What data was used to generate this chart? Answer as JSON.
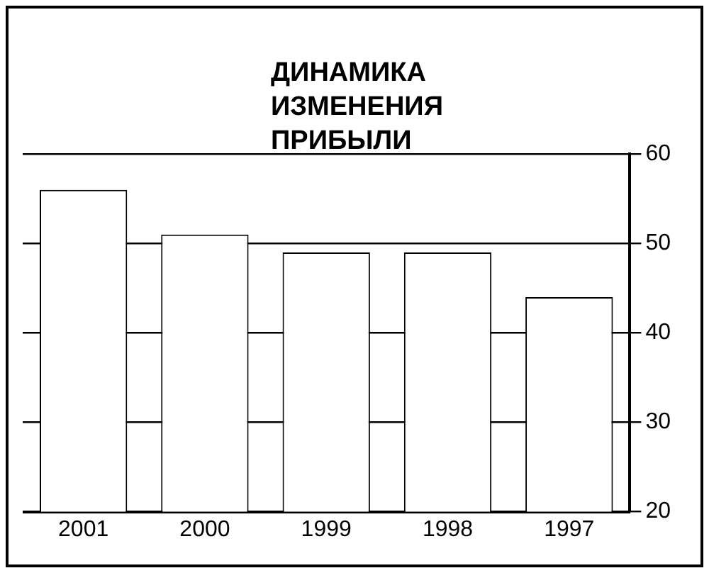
{
  "chart_data": {
    "type": "bar",
    "title": "ДИНАМИКА ИЗМЕНЕНИЯ ПРИБЫЛИ",
    "categories": [
      "2001",
      "2000",
      "1999",
      "1998",
      "1997"
    ],
    "values": [
      56,
      51,
      49,
      49,
      44
    ],
    "color": "#ffffff",
    "ylim": [
      20,
      60
    ],
    "yticks": [
      20,
      30,
      40,
      50,
      60
    ],
    "grid": "y"
  }
}
